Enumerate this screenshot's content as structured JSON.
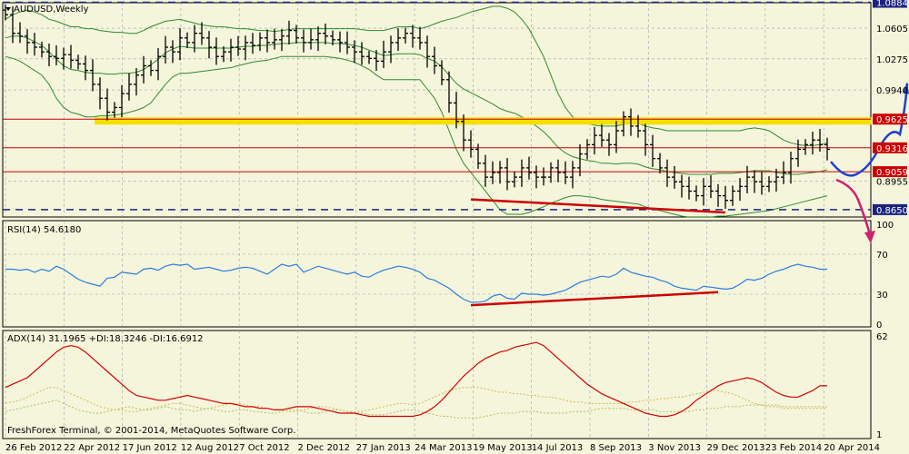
{
  "title": "AUDUSD,Weekly",
  "rsi_label": "RSI(14) 54.6180",
  "adx_label": "ADX(14) 31.1965 +DI:18.3246 -DI:16.6912",
  "copyright": "FreshForex Terminal, © 2001-2014, MetaQuotes Software Corp.",
  "colors": {
    "background": "#f5f5dc",
    "grid": "#9aa0b0",
    "bars": "#000000",
    "bollinger": "#2e8b2e",
    "levels": "#cc0000",
    "support_band": "#f2e000",
    "forecast_up": "#1f3fd0",
    "forecast_down": "#d0206f",
    "rsi_line": "#2a7de1",
    "adx_line": "#d40000",
    "di_plus": "#a8c060",
    "di_minus": "#d6b84a",
    "dashed": "#1a237e",
    "label_bg_red": "#cc0000",
    "label_bg_navy": "#1a237e"
  },
  "chart_data": [
    {
      "type": "ohlc",
      "name": "price",
      "x_labels": [
        "26 Feb 2012",
        "22 Apr 2012",
        "17 Jun 2012",
        "12 Aug 2012",
        "7 Oct 2012",
        "2 Dec 2012",
        "27 Jan 2013",
        "24 Mar 2013",
        "19 May 2013",
        "14 Jul 2013",
        "8 Sep 2013",
        "3 Nov 2013",
        "29 Dec 2013",
        "23 Feb 2014",
        "20 Apr 2014"
      ],
      "y_ticks": [
        "1.0605",
        "1.0275",
        "0.9940",
        "0.8955"
      ],
      "ylim": [
        0.86,
        1.085
      ],
      "price_labels": [
        {
          "text": "1.0884",
          "style": "navy"
        },
        {
          "text": "0.9625",
          "style": "red"
        },
        {
          "text": "0.9316",
          "style": "red"
        },
        {
          "text": "0.9059",
          "style": "red"
        },
        {
          "text": "0.8650",
          "style": "navy"
        }
      ],
      "levels": [
        0.9625,
        0.9316,
        0.9059
      ],
      "dashed_levels": [
        1.0884,
        0.865
      ],
      "closes": [
        1.075,
        1.055,
        1.052,
        1.045,
        1.04,
        1.035,
        1.03,
        1.028,
        1.032,
        1.026,
        1.022,
        1.015,
        1.0,
        0.985,
        0.97,
        0.975,
        0.99,
        1.0,
        1.01,
        1.02,
        1.015,
        1.03,
        1.04,
        1.035,
        1.05,
        1.045,
        1.055,
        1.05,
        1.04,
        1.03,
        1.035,
        1.04,
        1.038,
        1.045,
        1.042,
        1.05,
        1.045,
        1.048,
        1.052,
        1.058,
        1.05,
        1.045,
        1.048,
        1.055,
        1.052,
        1.048,
        1.045,
        1.04,
        1.035,
        1.03,
        1.028,
        1.025,
        1.035,
        1.045,
        1.05,
        1.055,
        1.05,
        1.045,
        1.03,
        1.02,
        1.005,
        0.98,
        0.96,
        0.94,
        0.93,
        0.915,
        0.9,
        0.905,
        0.91,
        0.895,
        0.9,
        0.91,
        0.905,
        0.9,
        0.9,
        0.91,
        0.905,
        0.9,
        0.91,
        0.925,
        0.935,
        0.945,
        0.94,
        0.935,
        0.95,
        0.965,
        0.955,
        0.95,
        0.935,
        0.92,
        0.91,
        0.9,
        0.895,
        0.89,
        0.885,
        0.88,
        0.89,
        0.885,
        0.88,
        0.875,
        0.885,
        0.89,
        0.9,
        0.895,
        0.89,
        0.895,
        0.9,
        0.905,
        0.92,
        0.93,
        0.935,
        0.94,
        0.935,
        0.93
      ],
      "bollinger_upper": [
        1.07,
        1.075,
        1.078,
        1.08,
        1.078,
        1.075,
        1.07,
        1.068,
        1.065,
        1.062,
        1.062,
        1.06,
        1.06,
        1.058,
        1.057,
        1.056,
        1.056,
        1.055,
        1.055,
        1.058,
        1.062,
        1.065,
        1.068,
        1.069,
        1.07,
        1.068,
        1.066,
        1.064,
        1.063,
        1.062,
        1.062,
        1.061,
        1.06,
        1.06,
        1.059,
        1.058,
        1.058,
        1.057,
        1.058,
        1.059,
        1.06,
        1.06,
        1.06,
        1.06,
        1.06,
        1.06,
        1.06,
        1.06,
        1.06,
        1.059,
        1.058,
        1.058,
        1.058,
        1.06,
        1.062,
        1.062,
        1.062,
        1.06,
        1.062,
        1.065,
        1.068,
        1.07,
        1.072,
        1.075,
        1.078,
        1.08,
        1.082,
        1.084,
        1.084,
        1.082,
        1.078,
        1.07,
        1.06,
        1.045,
        1.03,
        1.01,
        0.99,
        0.975,
        0.965,
        0.96,
        0.958,
        0.956,
        0.955,
        0.955,
        0.955,
        0.957,
        0.958,
        0.958,
        0.955,
        0.953,
        0.952,
        0.95,
        0.95,
        0.95,
        0.95,
        0.95,
        0.95,
        0.95,
        0.95,
        0.95,
        0.95,
        0.95,
        0.952,
        0.953,
        0.952,
        0.95,
        0.945,
        0.94,
        0.937,
        0.935,
        0.934,
        0.934,
        0.935,
        0.937
      ],
      "bollinger_lower": [
        1.03,
        1.028,
        1.025,
        1.02,
        1.015,
        1.01,
        1.0,
        0.985,
        0.975,
        0.97,
        0.968,
        0.965,
        0.965,
        0.966,
        0.966,
        0.967,
        0.968,
        0.97,
        0.972,
        0.975,
        0.98,
        0.99,
        1.0,
        1.008,
        1.012,
        1.012,
        1.013,
        1.014,
        1.015,
        1.016,
        1.017,
        1.018,
        1.02,
        1.022,
        1.024,
        1.025,
        1.026,
        1.028,
        1.03,
        1.03,
        1.03,
        1.03,
        1.03,
        1.03,
        1.03,
        1.029,
        1.028,
        1.026,
        1.024,
        1.02,
        1.016,
        1.01,
        1.005,
        1.005,
        1.005,
        1.005,
        1.005,
        1.005,
        0.995,
        0.985,
        0.97,
        0.95,
        0.93,
        0.915,
        0.905,
        0.895,
        0.885,
        0.875,
        0.865,
        0.86,
        0.86,
        0.86,
        0.862,
        0.865,
        0.868,
        0.872,
        0.875,
        0.878,
        0.88,
        0.88,
        0.879,
        0.878,
        0.876,
        0.875,
        0.874,
        0.873,
        0.872,
        0.871,
        0.868,
        0.866,
        0.864,
        0.862,
        0.86,
        0.858,
        0.857,
        0.857,
        0.857,
        0.857,
        0.858,
        0.858,
        0.859,
        0.86,
        0.861,
        0.862,
        0.863,
        0.864,
        0.866,
        0.868,
        0.87,
        0.872,
        0.874,
        0.876,
        0.878,
        0.88
      ],
      "bollinger_mid": [
        1.05,
        1.052,
        1.052,
        1.05,
        1.046,
        1.042,
        1.035,
        1.027,
        1.02,
        1.016,
        1.015,
        1.013,
        1.012,
        1.012,
        1.011,
        1.011,
        1.012,
        1.012,
        1.013,
        1.016,
        1.021,
        1.027,
        1.034,
        1.038,
        1.041,
        1.04,
        1.039,
        1.039,
        1.039,
        1.039,
        1.039,
        1.039,
        1.04,
        1.041,
        1.041,
        1.042,
        1.042,
        1.043,
        1.044,
        1.044,
        1.045,
        1.045,
        1.045,
        1.045,
        1.045,
        1.044,
        1.044,
        1.043,
        1.042,
        1.04,
        1.037,
        1.034,
        1.031,
        1.032,
        1.033,
        1.033,
        1.033,
        1.032,
        1.028,
        1.025,
        1.019,
        1.01,
        1.001,
        0.995,
        0.991,
        0.987,
        0.983,
        0.979,
        0.974,
        0.971,
        0.969,
        0.965,
        0.961,
        0.955,
        0.949,
        0.941,
        0.932,
        0.926,
        0.922,
        0.92,
        0.918,
        0.917,
        0.915,
        0.915,
        0.914,
        0.915,
        0.915,
        0.914,
        0.911,
        0.909,
        0.908,
        0.906,
        0.905,
        0.904,
        0.903,
        0.903,
        0.903,
        0.903,
        0.904,
        0.904,
        0.904,
        0.905,
        0.906,
        0.907,
        0.907,
        0.907,
        0.905,
        0.904,
        0.903,
        0.903,
        0.904,
        0.905,
        0.906,
        0.908
      ]
    },
    {
      "type": "line",
      "name": "RSI(14)",
      "y_ticks": [
        "100",
        "70",
        "30",
        "0"
      ],
      "ylim": [
        0,
        100
      ],
      "values": [
        55,
        55,
        54,
        55,
        52,
        55,
        53,
        58,
        55,
        50,
        45,
        42,
        40,
        38,
        46,
        47,
        52,
        51,
        50,
        55,
        56,
        54,
        58,
        60,
        59,
        60,
        55,
        56,
        57,
        55,
        53,
        54,
        56,
        57,
        56,
        53,
        50,
        55,
        60,
        58,
        60,
        52,
        55,
        58,
        56,
        54,
        52,
        50,
        52,
        48,
        47,
        51,
        54,
        56,
        58,
        57,
        55,
        52,
        46,
        44,
        40,
        36,
        30,
        25,
        22,
        22,
        23,
        28,
        30,
        26,
        25,
        31,
        30,
        30,
        29,
        30,
        32,
        34,
        38,
        42,
        44,
        46,
        48,
        47,
        50,
        56,
        52,
        50,
        48,
        47,
        44,
        42,
        38,
        36,
        35,
        34,
        38,
        37,
        36,
        35,
        36,
        40,
        45,
        44,
        46,
        50,
        53,
        55,
        58,
        60,
        58,
        57,
        55,
        55
      ]
    },
    {
      "type": "line",
      "name": "ADX(14)",
      "y_ticks": [
        "62",
        "1"
      ],
      "ylim": [
        1,
        62
      ],
      "adx": [
        30,
        32,
        34,
        36,
        40,
        44,
        48,
        52,
        55,
        56,
        55,
        52,
        48,
        44,
        40,
        36,
        32,
        28,
        25,
        24,
        23,
        22,
        22,
        23,
        24,
        25,
        24,
        23,
        22,
        21,
        20,
        20,
        19,
        18,
        18,
        17,
        17,
        16,
        16,
        17,
        18,
        18,
        18,
        17,
        16,
        15,
        14,
        14,
        14,
        13,
        12,
        12,
        12,
        12,
        12,
        12,
        12,
        13,
        15,
        18,
        22,
        27,
        32,
        37,
        41,
        45,
        48,
        50,
        52,
        53,
        55,
        56,
        57,
        58,
        56,
        52,
        48,
        44,
        40,
        36,
        32,
        29,
        26,
        24,
        22,
        20,
        18,
        16,
        14,
        13,
        12,
        12,
        13,
        15,
        18,
        22,
        25,
        28,
        31,
        33,
        34,
        35,
        36,
        35,
        33,
        30,
        27,
        25,
        24,
        24,
        26,
        28,
        31,
        31
      ],
      "di_plus": [
        15,
        16,
        17,
        18,
        19,
        20,
        21,
        22,
        20,
        18,
        16,
        15,
        14,
        14,
        15,
        16,
        17,
        18,
        17,
        16,
        16,
        17,
        18,
        17,
        16,
        16,
        15,
        16,
        17,
        16,
        15,
        15,
        16,
        16,
        15,
        15,
        14,
        14,
        15,
        16,
        16,
        15,
        14,
        14,
        15,
        16,
        16,
        15,
        14,
        14,
        13,
        13,
        13,
        14,
        15,
        16,
        16,
        15,
        14,
        13,
        12,
        12,
        11,
        11,
        11,
        11,
        12,
        13,
        14,
        14,
        14,
        15,
        15,
        15,
        14,
        14,
        14,
        14,
        15,
        15,
        15,
        16,
        17,
        17,
        17,
        17,
        16,
        16,
        16,
        16,
        15,
        15,
        15,
        15,
        15,
        16,
        16,
        17,
        17,
        18,
        18,
        18,
        19,
        19,
        19,
        19,
        19,
        18,
        18,
        18,
        18,
        18,
        18,
        18
      ],
      "di_minus": [
        20,
        21,
        22,
        24,
        26,
        28,
        30,
        30,
        28,
        26,
        24,
        22,
        20,
        18,
        17,
        16,
        16,
        15,
        15,
        16,
        17,
        18,
        19,
        20,
        20,
        19,
        18,
        17,
        17,
        18,
        19,
        20,
        20,
        19,
        18,
        18,
        17,
        16,
        16,
        15,
        15,
        16,
        17,
        18,
        18,
        17,
        16,
        15,
        15,
        15,
        16,
        17,
        18,
        19,
        20,
        20,
        19,
        20,
        22,
        24,
        26,
        28,
        29,
        30,
        30,
        30,
        29,
        28,
        27,
        27,
        26,
        26,
        25,
        25,
        24,
        24,
        23,
        22,
        21,
        21,
        20,
        20,
        20,
        20,
        20,
        20,
        21,
        21,
        22,
        22,
        23,
        23,
        24,
        24,
        25,
        26,
        27,
        28,
        28,
        27,
        26,
        24,
        22,
        20,
        19,
        18,
        18,
        17,
        17,
        17,
        17,
        17,
        17,
        17
      ]
    }
  ]
}
